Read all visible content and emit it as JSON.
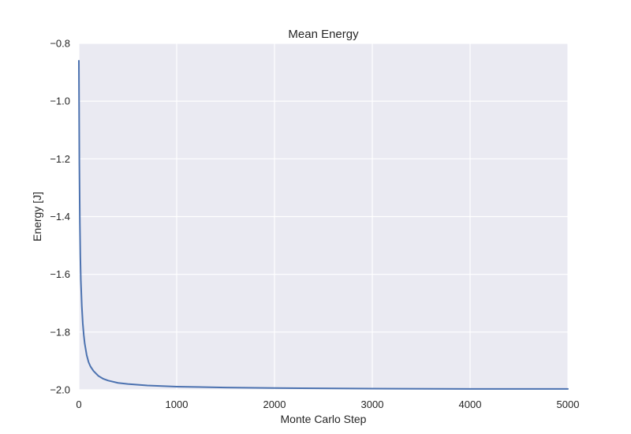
{
  "chart_data": {
    "type": "line",
    "title": "Mean Energy",
    "xlabel": "Monte Carlo Step",
    "ylabel": "Energy [J]",
    "xlim": [
      0,
      5000
    ],
    "ylim": [
      -2.0,
      -0.8
    ],
    "xticks": [
      0,
      1000,
      2000,
      3000,
      4000,
      5000
    ],
    "xtick_labels": [
      "0",
      "1000",
      "2000",
      "3000",
      "4000",
      "5000"
    ],
    "yticks": [
      -2.0,
      -1.8,
      -1.6,
      -1.4,
      -1.2,
      -1.0,
      -0.8
    ],
    "ytick_labels": [
      "−2.0",
      "−1.8",
      "−1.6",
      "−1.4",
      "−1.2",
      "−1.0",
      "−0.8"
    ],
    "grid": true,
    "background": "#eaeaf2",
    "gridColor": "#ffffff",
    "series": [
      {
        "color": "#4c72b0",
        "x": [
          0,
          5,
          10,
          15,
          20,
          30,
          40,
          50,
          60,
          70,
          80,
          100,
          120,
          150,
          200,
          250,
          300,
          400,
          500,
          700,
          1000,
          1500,
          2000,
          3000,
          4000,
          5000
        ],
        "y": [
          -0.86,
          -1.22,
          -1.42,
          -1.54,
          -1.62,
          -1.71,
          -1.77,
          -1.81,
          -1.84,
          -1.86,
          -1.88,
          -1.905,
          -1.92,
          -1.935,
          -1.952,
          -1.962,
          -1.968,
          -1.976,
          -1.98,
          -1.985,
          -1.989,
          -1.992,
          -1.994,
          -1.996,
          -1.997,
          -1.997
        ]
      }
    ]
  }
}
